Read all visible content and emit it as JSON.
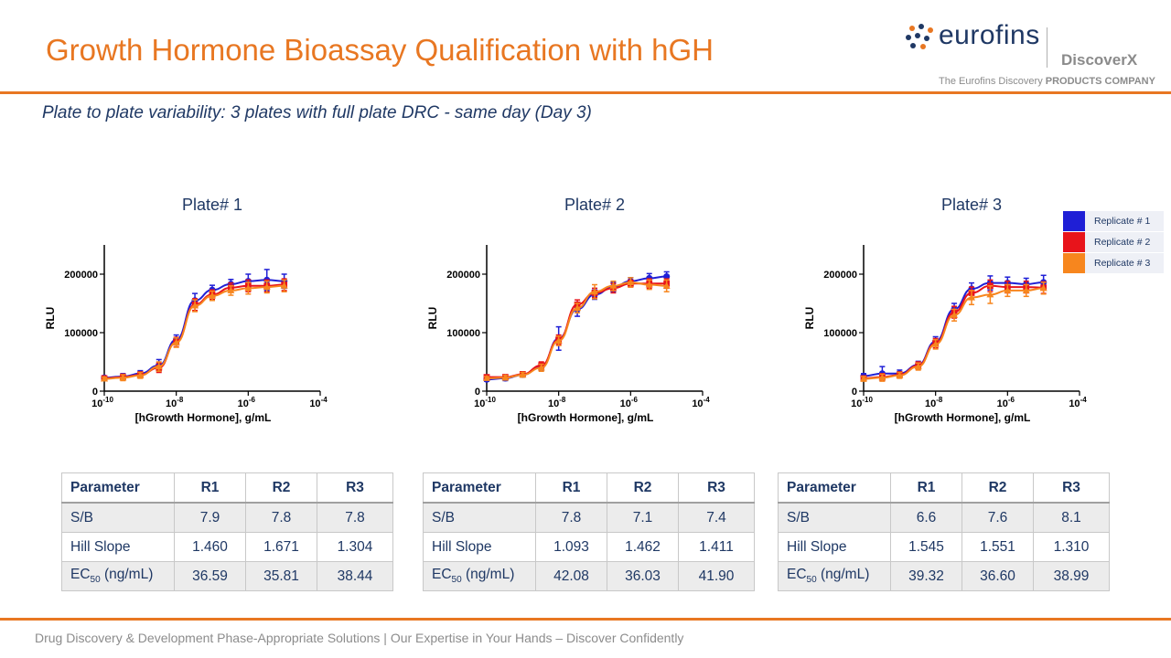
{
  "header": {
    "title": "Growth Hormone Bioassay Qualification with hGH",
    "subtitle": "Plate to plate variability: 3 plates with full plate DRC - same day (Day 3)"
  },
  "logo": {
    "name": "eurofins",
    "brand": "DiscoverX",
    "tagline_prefix": "The Eurofins Discovery ",
    "tagline_bold": "PRODUCTS COMPANY"
  },
  "footer": "Drug Discovery & Development Phase-Appropriate Solutions | Our Expertise in Your Hands – Discover Confidently",
  "colors": {
    "accent": "#e87722",
    "navy": "#1f3864",
    "replicate_1": "#1f1fd6",
    "replicate_2": "#e8141b",
    "replicate_3": "#f7861e"
  },
  "legend": [
    "Replicate # 1",
    "Replicate # 2",
    "Replicate # 3"
  ],
  "chart_data": [
    {
      "type": "scatter",
      "title": "Plate# 1",
      "xlabel": "[hGrowth Hormone], g/mL",
      "ylabel": "RLU",
      "x_scale": "log",
      "xlim": [
        1e-10,
        0.0001
      ],
      "ylim": [
        0,
        250000
      ],
      "x_ticks": [
        1e-10,
        1e-08,
        1e-06,
        0.0001
      ],
      "x_tick_labels": [
        "-10",
        "-8",
        "-6",
        "-4"
      ],
      "y_ticks": [
        0,
        100000,
        200000
      ],
      "y_tick_labels": [
        "0",
        "100000",
        "200000"
      ],
      "x": [
        1e-10,
        3.3e-10,
        1e-09,
        3.3e-09,
        1e-08,
        3.3e-08,
        1e-07,
        3.3e-07,
        1e-06,
        3.3e-06,
        1e-05
      ],
      "series": [
        {
          "name": "Replicate # 1",
          "values": [
            23000,
            25000,
            30000,
            44000,
            88000,
            155000,
            173000,
            183000,
            188000,
            190000,
            188000
          ],
          "errors": [
            3000,
            5000,
            5000,
            10000,
            8000,
            12000,
            8000,
            8000,
            12000,
            18000,
            12000
          ]
        },
        {
          "name": "Replicate # 2",
          "values": [
            22000,
            24000,
            28000,
            40000,
            84000,
            148000,
            165000,
            177000,
            180000,
            180000,
            182000
          ],
          "errors": [
            3000,
            5000,
            5000,
            8000,
            8000,
            10000,
            8000,
            8000,
            10000,
            10000,
            10000
          ]
        },
        {
          "name": "Replicate # 3",
          "values": [
            21000,
            23000,
            27000,
            42000,
            83000,
            146000,
            163000,
            172000,
            176000,
            178000,
            180000
          ],
          "errors": [
            3000,
            5000,
            5000,
            8000,
            8000,
            10000,
            8000,
            8000,
            10000,
            10000,
            10000
          ]
        }
      ]
    },
    {
      "type": "scatter",
      "title": "Plate# 2",
      "xlabel": "[hGrowth Hormone], g/mL",
      "ylabel": "RLU",
      "x_scale": "log",
      "xlim": [
        1e-10,
        0.0001
      ],
      "ylim": [
        0,
        250000
      ],
      "x_ticks": [
        1e-10,
        1e-08,
        1e-06,
        0.0001
      ],
      "x_tick_labels": [
        "-10",
        "-8",
        "-6",
        "-4"
      ],
      "y_ticks": [
        0,
        100000,
        200000
      ],
      "y_tick_labels": [
        "0",
        "100000",
        "200000"
      ],
      "x": [
        1e-10,
        3.3e-10,
        1e-09,
        3.3e-09,
        1e-08,
        3.3e-08,
        1e-07,
        3.3e-07,
        1e-06,
        3.3e-06,
        1e-05
      ],
      "series": [
        {
          "name": "Replicate # 1",
          "values": [
            20000,
            22000,
            28000,
            42000,
            90000,
            140000,
            165000,
            178000,
            188000,
            193000,
            196000
          ],
          "errors": [
            3000,
            4000,
            4000,
            6000,
            20000,
            12000,
            8000,
            8000,
            6000,
            8000,
            8000
          ]
        },
        {
          "name": "Replicate # 2",
          "values": [
            24000,
            24000,
            29000,
            44000,
            88000,
            148000,
            168000,
            176000,
            184000,
            184000,
            184000
          ],
          "errors": [
            3000,
            4000,
            4000,
            6000,
            8000,
            8000,
            8000,
            8000,
            6000,
            8000,
            8000
          ]
        },
        {
          "name": "Replicate # 3",
          "values": [
            22000,
            23000,
            28000,
            40000,
            86000,
            142000,
            170000,
            180000,
            186000,
            182000,
            180000
          ],
          "errors": [
            3000,
            4000,
            4000,
            6000,
            8000,
            8000,
            12000,
            8000,
            8000,
            8000,
            10000
          ]
        }
      ]
    },
    {
      "type": "scatter",
      "title": "Plate# 3",
      "xlabel": "[hGrowth Hormone], g/mL",
      "ylabel": "RLU",
      "x_scale": "log",
      "xlim": [
        1e-10,
        0.0001
      ],
      "ylim": [
        0,
        250000
      ],
      "x_ticks": [
        1e-10,
        1e-08,
        1e-06,
        0.0001
      ],
      "x_tick_labels": [
        "-10",
        "-8",
        "-6",
        "-4"
      ],
      "y_ticks": [
        0,
        100000,
        200000
      ],
      "y_tick_labels": [
        "0",
        "100000",
        "200000"
      ],
      "x": [
        1e-10,
        3.3e-10,
        1e-09,
        3.3e-09,
        1e-08,
        3.3e-08,
        1e-07,
        3.3e-07,
        1e-06,
        3.3e-06,
        1e-05
      ],
      "series": [
        {
          "name": "Replicate # 1",
          "values": [
            26000,
            30000,
            30000,
            45000,
            85000,
            140000,
            175000,
            185000,
            185000,
            183000,
            186000
          ],
          "errors": [
            4000,
            12000,
            6000,
            6000,
            8000,
            10000,
            10000,
            12000,
            10000,
            10000,
            12000
          ]
        },
        {
          "name": "Replicate # 2",
          "values": [
            22000,
            24000,
            28000,
            44000,
            82000,
            135000,
            168000,
            180000,
            178000,
            178000,
            177000
          ],
          "errors": [
            4000,
            6000,
            5000,
            6000,
            8000,
            10000,
            10000,
            10000,
            10000,
            10000,
            10000
          ]
        },
        {
          "name": "Replicate # 3",
          "values": [
            21000,
            23000,
            27000,
            42000,
            80000,
            130000,
            160000,
            165000,
            172000,
            172000,
            176000
          ],
          "errors": [
            4000,
            6000,
            5000,
            6000,
            8000,
            10000,
            12000,
            15000,
            10000,
            10000,
            10000
          ]
        }
      ]
    }
  ],
  "tables": [
    {
      "headers": [
        "Parameter",
        "R1",
        "R2",
        "R3"
      ],
      "rows": [
        {
          "param": "S/B",
          "values": [
            "7.9",
            "7.8",
            "7.8"
          ]
        },
        {
          "param": "Hill Slope",
          "values": [
            "1.460",
            "1.671",
            "1.304"
          ]
        },
        {
          "param_main": "EC",
          "param_sub": "50",
          "param_suffix": " (ng/mL)",
          "values": [
            "36.59",
            "35.81",
            "38.44"
          ]
        }
      ]
    },
    {
      "headers": [
        "Parameter",
        "R1",
        "R2",
        "R3"
      ],
      "rows": [
        {
          "param": "S/B",
          "values": [
            "7.8",
            "7.1",
            "7.4"
          ]
        },
        {
          "param": "Hill Slope",
          "values": [
            "1.093",
            "1.462",
            "1.411"
          ]
        },
        {
          "param_main": "EC",
          "param_sub": "50",
          "param_suffix": " (ng/mL)",
          "values": [
            "42.08",
            "36.03",
            "41.90"
          ]
        }
      ]
    },
    {
      "headers": [
        "Parameter",
        "R1",
        "R2",
        "R3"
      ],
      "rows": [
        {
          "param": "S/B",
          "values": [
            "6.6",
            "7.6",
            "8.1"
          ]
        },
        {
          "param": "Hill Slope",
          "values": [
            "1.545",
            "1.551",
            "1.310"
          ]
        },
        {
          "param_main": "EC",
          "param_sub": "50",
          "param_suffix": " (ng/mL)",
          "values": [
            "39.32",
            "36.60",
            "38.99"
          ]
        }
      ]
    }
  ]
}
